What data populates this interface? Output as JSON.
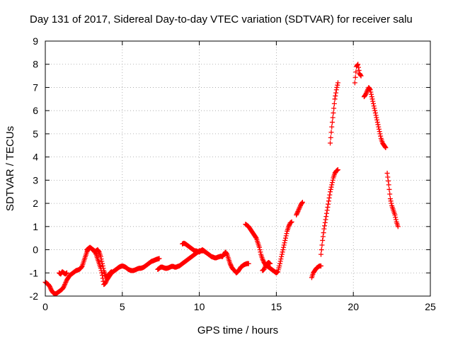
{
  "chart_data": {
    "type": "scatter",
    "title": "Day 131 of 2017, Sidereal Day-to-day VTEC variation (SDTVAR) for receiver salu",
    "xlabel": "GPS time / hours",
    "ylabel": "SDTVAR / TECUs",
    "xlim": [
      0,
      25
    ],
    "ylim": [
      -2,
      9
    ],
    "xticks": [
      "0",
      "5",
      "10",
      "15",
      "20",
      "25"
    ],
    "yticks": [
      "-2",
      "-1",
      "0",
      "1",
      "2",
      "3",
      "4",
      "5",
      "6",
      "7",
      "8",
      "9"
    ],
    "grid": true,
    "marker": "+",
    "color": "#ff0000",
    "series": [
      {
        "x": [
          0.0,
          0.1,
          0.2,
          0.3,
          0.4,
          0.5,
          0.6,
          0.7,
          0.8,
          0.9,
          1.0,
          1.1,
          1.2,
          1.3,
          1.4,
          1.5,
          1.6,
          1.7,
          1.8,
          1.9,
          2.0,
          2.1,
          2.2,
          2.3,
          2.4,
          2.5,
          2.6,
          2.7,
          2.8,
          2.9,
          3.0,
          3.1,
          3.2,
          3.3,
          3.4,
          3.5,
          3.6,
          3.7,
          3.8,
          3.9,
          4.0,
          4.1,
          4.2,
          4.3,
          4.4,
          4.5,
          4.6,
          4.7,
          4.8,
          4.9,
          5.0,
          5.1,
          5.2,
          5.3,
          5.4,
          5.5,
          5.6,
          5.7,
          5.8,
          5.9,
          6.0,
          6.1,
          6.2,
          6.3,
          6.4,
          6.5,
          6.6,
          6.7,
          6.8,
          6.9,
          7.0,
          7.1,
          7.2,
          7.3,
          7.4
        ],
        "y": [
          -1.4,
          -1.45,
          -1.5,
          -1.6,
          -1.75,
          -1.85,
          -1.9,
          -1.9,
          -1.85,
          -1.8,
          -1.75,
          -1.7,
          -1.6,
          -1.45,
          -1.3,
          -1.2,
          -1.1,
          -1.05,
          -1.0,
          -0.95,
          -0.9,
          -0.88,
          -0.85,
          -0.8,
          -0.7,
          -0.5,
          -0.3,
          -0.1,
          0.05,
          0.1,
          0.05,
          0.0,
          -0.05,
          -0.2,
          -0.4,
          -0.6,
          -0.8,
          -1.1,
          -1.5,
          -1.45,
          -1.3,
          -1.2,
          -1.1,
          -1.0,
          -0.95,
          -0.9,
          -0.85,
          -0.8,
          -0.75,
          -0.72,
          -0.7,
          -0.72,
          -0.75,
          -0.8,
          -0.85,
          -0.88,
          -0.9,
          -0.9,
          -0.88,
          -0.85,
          -0.82,
          -0.8,
          -0.8,
          -0.78,
          -0.75,
          -0.7,
          -0.65,
          -0.6,
          -0.55,
          -0.5,
          -0.48,
          -0.45,
          -0.42,
          -0.4,
          -0.38
        ]
      },
      {
        "x": [
          0.9,
          1.0,
          1.1,
          1.2,
          1.3,
          1.4
        ],
        "y": [
          -1.0,
          -1.05,
          -0.95,
          -1.0,
          -1.05,
          -1.0
        ]
      },
      {
        "x": [
          2.7,
          2.8,
          2.9,
          3.0,
          3.1,
          3.2,
          3.3,
          3.4,
          3.5,
          3.6,
          3.7,
          3.8,
          3.9,
          4.0,
          4.1,
          4.2,
          4.3
        ],
        "y": [
          0.0,
          0.05,
          0.1,
          0.05,
          0.0,
          -0.1,
          -0.05,
          0.0,
          -0.1,
          -0.3,
          -0.6,
          -0.9,
          -1.1,
          -1.2,
          -1.1,
          -1.0,
          -0.95
        ]
      },
      {
        "x": [
          7.3,
          7.4,
          7.5,
          7.6,
          7.7,
          7.8,
          7.9,
          8.0,
          8.1,
          8.2,
          8.3,
          8.4,
          8.5,
          8.6,
          8.7,
          8.8,
          8.9,
          9.0,
          9.1,
          9.2,
          9.3,
          9.4,
          9.5,
          9.6,
          9.7,
          9.8,
          9.9,
          10.0,
          10.1,
          10.2,
          10.3,
          10.4,
          10.5,
          10.6,
          10.7,
          10.8,
          10.9,
          11.0,
          11.1,
          11.2,
          11.3,
          11.4,
          11.5,
          11.6,
          11.7,
          11.8,
          11.9,
          12.0,
          12.1,
          12.2,
          12.3,
          12.4,
          12.5,
          12.6,
          12.7,
          12.8,
          12.9,
          13.0,
          13.1,
          13.2
        ],
        "y": [
          -0.85,
          -0.8,
          -0.75,
          -0.75,
          -0.78,
          -0.8,
          -0.8,
          -0.78,
          -0.75,
          -0.72,
          -0.72,
          -0.75,
          -0.75,
          -0.72,
          -0.7,
          -0.65,
          -0.6,
          -0.55,
          -0.5,
          -0.45,
          -0.4,
          -0.35,
          -0.3,
          -0.25,
          -0.2,
          -0.15,
          -0.1,
          -0.05,
          -0.05,
          -0.05,
          -0.05,
          -0.1,
          -0.15,
          -0.2,
          -0.25,
          -0.3,
          -0.32,
          -0.35,
          -0.35,
          -0.32,
          -0.3,
          -0.28,
          -0.3,
          -0.2,
          -0.1,
          -0.2,
          -0.4,
          -0.6,
          -0.75,
          -0.85,
          -0.9,
          -1.0,
          -0.95,
          -0.85,
          -0.75,
          -0.7,
          -0.65,
          -0.62,
          -0.6,
          -0.6
        ]
      },
      {
        "x": [
          8.9,
          9.0,
          9.1,
          9.2,
          9.3,
          9.4,
          9.5,
          9.6,
          9.7,
          9.8,
          9.9,
          10.0,
          10.1,
          10.2,
          10.3,
          10.4
        ],
        "y": [
          0.25,
          0.28,
          0.25,
          0.2,
          0.15,
          0.1,
          0.05,
          0.0,
          -0.05,
          -0.05,
          -0.08,
          -0.1,
          -0.05,
          0.0,
          -0.05,
          -0.1
        ]
      },
      {
        "x": [
          13.0,
          13.1,
          13.2,
          13.3,
          13.4,
          13.5,
          13.6,
          13.7,
          13.8,
          13.9,
          14.0,
          14.1,
          14.2,
          14.3,
          14.4,
          14.5,
          14.6,
          14.7,
          14.8,
          14.9,
          15.0,
          15.1,
          15.2,
          15.3,
          15.4,
          15.5,
          15.6,
          15.7,
          15.8,
          15.9,
          16.0
        ],
        "y": [
          1.1,
          1.05,
          1.0,
          0.9,
          0.8,
          0.7,
          0.6,
          0.5,
          0.3,
          0.1,
          -0.2,
          -0.4,
          -0.55,
          -0.65,
          -0.7,
          -0.75,
          -0.8,
          -0.85,
          -0.9,
          -0.95,
          -1.0,
          -0.95,
          -0.7,
          -0.4,
          -0.1,
          0.2,
          0.5,
          0.8,
          1.0,
          1.15,
          1.2
        ]
      },
      {
        "x": [
          14.1,
          14.2,
          14.3,
          14.4,
          14.5,
          14.6
        ],
        "y": [
          -0.9,
          -0.85,
          -0.7,
          -0.6,
          -0.55,
          -0.6
        ]
      },
      {
        "x": [
          16.3,
          16.4,
          16.5,
          16.6,
          16.7
        ],
        "y": [
          1.5,
          1.65,
          1.8,
          1.95,
          2.05
        ]
      },
      {
        "x": [
          17.3,
          17.4,
          17.5,
          17.6,
          17.7,
          17.8,
          17.9
        ],
        "y": [
          -1.2,
          -1.0,
          -0.9,
          -0.8,
          -0.75,
          -0.7,
          -0.7
        ]
      },
      {
        "x": [
          17.9,
          18.0,
          18.1,
          18.2,
          18.3,
          18.4,
          18.5,
          18.6,
          18.7,
          18.8,
          18.9,
          19.0
        ],
        "y": [
          -0.2,
          0.4,
          0.9,
          1.3,
          1.7,
          2.1,
          2.5,
          2.8,
          3.1,
          3.3,
          3.4,
          3.45
        ]
      },
      {
        "x": [
          18.5,
          18.6,
          18.7,
          18.8,
          18.9,
          19.0
        ],
        "y": [
          4.6,
          5.3,
          5.9,
          6.5,
          6.9,
          7.2
        ]
      },
      {
        "x": [
          20.1,
          20.2,
          20.3,
          20.4,
          20.5
        ],
        "y": [
          7.2,
          7.9,
          8.0,
          7.6,
          7.5
        ]
      },
      {
        "x": [
          20.7,
          20.8,
          20.9,
          21.0,
          21.1,
          21.2,
          21.3,
          21.4,
          21.5,
          21.6,
          21.7,
          21.8,
          21.9,
          22.0,
          22.1
        ],
        "y": [
          6.6,
          6.7,
          6.85,
          7.0,
          6.9,
          6.6,
          6.3,
          6.0,
          5.7,
          5.4,
          5.1,
          4.8,
          4.6,
          4.5,
          4.4
        ]
      },
      {
        "x": [
          22.2,
          22.3,
          22.4,
          22.5,
          22.6,
          22.7,
          22.8,
          22.9
        ],
        "y": [
          3.3,
          2.8,
          2.2,
          1.9,
          1.7,
          1.5,
          1.2,
          1.0
        ]
      }
    ]
  }
}
